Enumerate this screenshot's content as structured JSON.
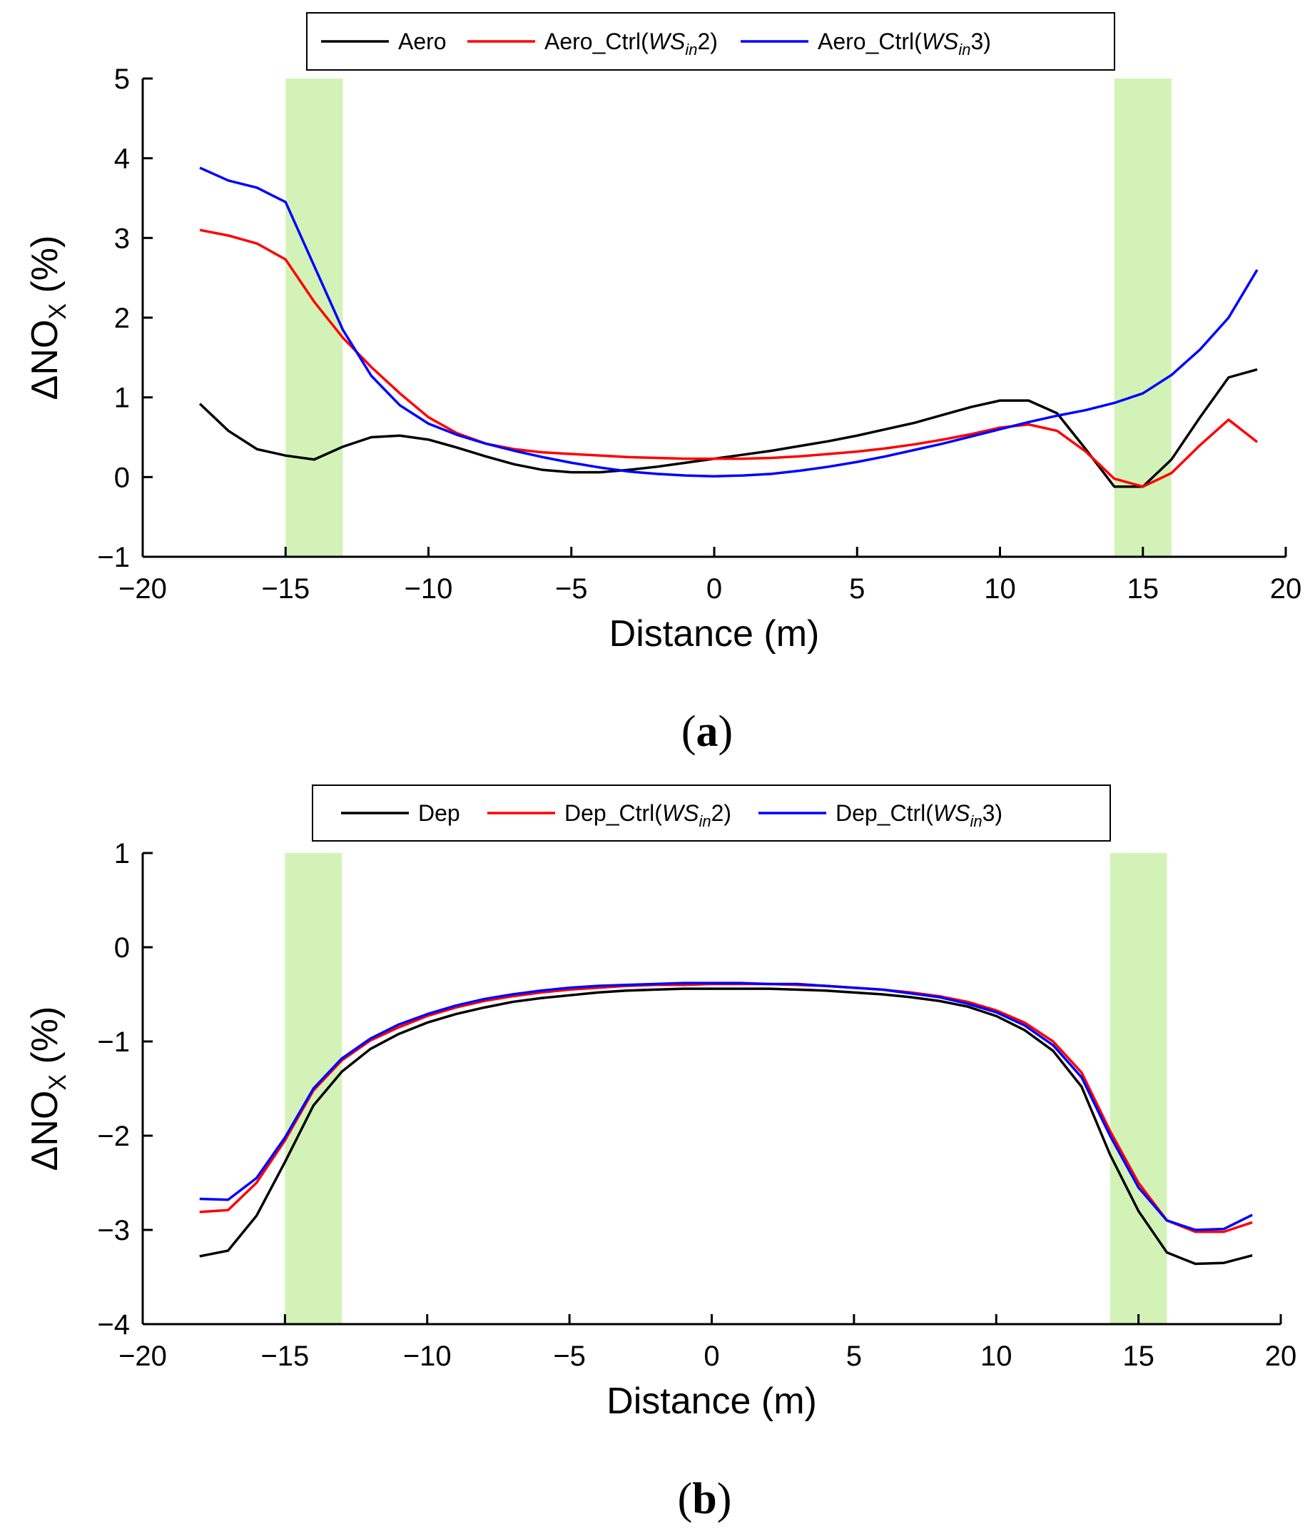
{
  "chart_data": [
    {
      "type": "line",
      "panel_caption_letter": "a",
      "xlabel": "Distance (m)",
      "ylabel": {
        "prefix": "ΔNO",
        "sub": "X",
        "suffix": " (%)"
      },
      "xlim": [
        -20,
        20
      ],
      "ylim": [
        -1,
        5
      ],
      "xticks": [
        -20,
        -15,
        -10,
        -5,
        0,
        5,
        10,
        15,
        20
      ],
      "yticks": [
        -1,
        0,
        1,
        2,
        3,
        4,
        5
      ],
      "shaded_x_ranges": [
        [
          -15,
          -13
        ],
        [
          14,
          16
        ]
      ],
      "shade_color": "#d3f2b8",
      "legend": [
        {
          "label": "Aero",
          "color": "#000000"
        },
        {
          "label_prefix": "Aero_Ctrl(",
          "label_italic": "WS",
          "label_sub": "in",
          "label_suffix": "2)",
          "color": "#ff0000"
        },
        {
          "label_prefix": "Aero_Ctrl(",
          "label_italic": "WS",
          "label_sub": "in",
          "label_suffix": "3)",
          "color": "#0000ff"
        }
      ],
      "x": [
        -18,
        -17,
        -16,
        -15,
        -14,
        -13,
        -12,
        -11,
        -10,
        -9,
        -8,
        -7,
        -6,
        -5,
        -4,
        -3,
        -2,
        -1,
        0,
        1,
        2,
        3,
        4,
        5,
        6,
        7,
        8,
        9,
        10,
        11,
        12,
        13,
        14,
        15,
        16,
        17,
        18,
        19
      ],
      "series": [
        {
          "name": "Aero",
          "color": "#000000",
          "values": [
            0.92,
            0.58,
            0.35,
            0.27,
            0.22,
            0.38,
            0.5,
            0.52,
            0.47,
            0.37,
            0.26,
            0.16,
            0.09,
            0.06,
            0.06,
            0.09,
            0.13,
            0.18,
            0.23,
            0.28,
            0.33,
            0.39,
            0.45,
            0.52,
            0.6,
            0.68,
            0.78,
            0.88,
            0.96,
            0.96,
            0.8,
            0.35,
            -0.12,
            -0.12,
            0.22,
            0.75,
            1.25,
            1.35
          ]
        },
        {
          "name": "Aero_Ctrl(WSin2)",
          "color": "#ff0000",
          "values": [
            3.1,
            3.03,
            2.93,
            2.73,
            2.2,
            1.75,
            1.38,
            1.05,
            0.75,
            0.55,
            0.42,
            0.35,
            0.31,
            0.29,
            0.27,
            0.25,
            0.24,
            0.23,
            0.23,
            0.23,
            0.24,
            0.26,
            0.29,
            0.32,
            0.36,
            0.41,
            0.47,
            0.54,
            0.62,
            0.66,
            0.58,
            0.32,
            -0.02,
            -0.12,
            0.05,
            0.4,
            0.72,
            0.44
          ]
        },
        {
          "name": "Aero_Ctrl(WSin3)",
          "color": "#0000ff",
          "values": [
            3.88,
            3.72,
            3.63,
            3.45,
            2.65,
            1.85,
            1.27,
            0.9,
            0.67,
            0.53,
            0.42,
            0.33,
            0.25,
            0.18,
            0.12,
            0.07,
            0.04,
            0.02,
            0.01,
            0.02,
            0.04,
            0.08,
            0.13,
            0.19,
            0.26,
            0.34,
            0.42,
            0.51,
            0.6,
            0.69,
            0.77,
            0.84,
            0.93,
            1.05,
            1.28,
            1.6,
            2.0,
            2.6
          ]
        }
      ]
    },
    {
      "type": "line",
      "panel_caption_letter": "b",
      "xlabel": "Distance (m)",
      "ylabel": {
        "prefix": "ΔNO",
        "sub": "X",
        "suffix": " (%)"
      },
      "xlim": [
        -20,
        20
      ],
      "ylim": [
        -4,
        1
      ],
      "xticks": [
        -20,
        -15,
        -10,
        -5,
        0,
        5,
        10,
        15,
        20
      ],
      "yticks": [
        -4,
        -3,
        -2,
        -1,
        0,
        1
      ],
      "shaded_x_ranges": [
        [
          -15,
          -13
        ],
        [
          14,
          16
        ]
      ],
      "shade_color": "#d3f2b8",
      "legend": [
        {
          "label": "Dep",
          "color": "#000000"
        },
        {
          "label_prefix": "Dep_Ctrl(",
          "label_italic": "WS",
          "label_sub": "in",
          "label_suffix": "2)",
          "color": "#ff0000"
        },
        {
          "label_prefix": "Dep_Ctrl(",
          "label_italic": "WS",
          "label_sub": "in",
          "label_suffix": "3)",
          "color": "#0000ff"
        }
      ],
      "x": [
        -18,
        -17,
        -16,
        -15,
        -14,
        -13,
        -12,
        -11,
        -10,
        -9,
        -8,
        -7,
        -6,
        -5,
        -4,
        -3,
        -2,
        -1,
        0,
        1,
        2,
        3,
        4,
        5,
        6,
        7,
        8,
        9,
        10,
        11,
        12,
        13,
        14,
        15,
        16,
        17,
        18,
        19
      ],
      "series": [
        {
          "name": "Dep",
          "color": "#000000",
          "values": [
            -3.28,
            -3.22,
            -2.85,
            -2.28,
            -1.68,
            -1.32,
            -1.08,
            -0.92,
            -0.8,
            -0.71,
            -0.64,
            -0.58,
            -0.54,
            -0.51,
            -0.48,
            -0.46,
            -0.45,
            -0.44,
            -0.44,
            -0.44,
            -0.44,
            -0.45,
            -0.46,
            -0.48,
            -0.5,
            -0.53,
            -0.57,
            -0.63,
            -0.73,
            -0.88,
            -1.1,
            -1.48,
            -2.2,
            -2.8,
            -3.24,
            -3.36,
            -3.35,
            -3.27
          ]
        },
        {
          "name": "Dep_Ctrl(WSin2)",
          "color": "#ff0000",
          "values": [
            -2.81,
            -2.79,
            -2.5,
            -2.05,
            -1.52,
            -1.2,
            -0.99,
            -0.85,
            -0.73,
            -0.64,
            -0.57,
            -0.52,
            -0.48,
            -0.45,
            -0.43,
            -0.41,
            -0.4,
            -0.4,
            -0.39,
            -0.39,
            -0.39,
            -0.4,
            -0.41,
            -0.43,
            -0.45,
            -0.48,
            -0.52,
            -0.58,
            -0.67,
            -0.8,
            -1.0,
            -1.33,
            -1.95,
            -2.5,
            -2.9,
            -3.02,
            -3.02,
            -2.92
          ]
        },
        {
          "name": "Dep_Ctrl(WSin3)",
          "color": "#0000ff",
          "values": [
            -2.67,
            -2.68,
            -2.45,
            -2.02,
            -1.5,
            -1.18,
            -0.97,
            -0.82,
            -0.71,
            -0.62,
            -0.55,
            -0.5,
            -0.46,
            -0.43,
            -0.41,
            -0.4,
            -0.39,
            -0.38,
            -0.38,
            -0.38,
            -0.39,
            -0.39,
            -0.41,
            -0.43,
            -0.45,
            -0.49,
            -0.53,
            -0.6,
            -0.69,
            -0.83,
            -1.04,
            -1.38,
            -2.0,
            -2.55,
            -2.9,
            -3.0,
            -2.99,
            -2.84
          ]
        }
      ]
    }
  ]
}
